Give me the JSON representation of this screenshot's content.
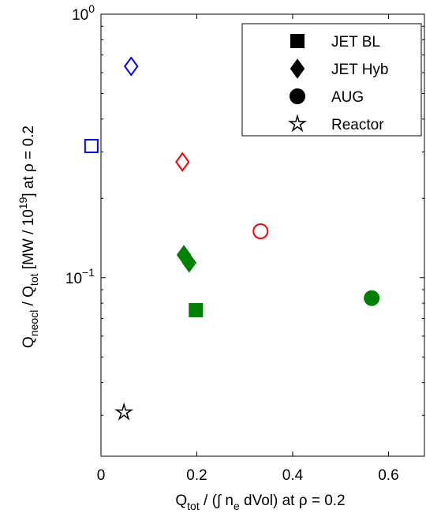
{
  "chart_data": {
    "type": "scatter",
    "xlabel": [
      "Q",
      "tot",
      " / (∫ n",
      "e",
      " dVol) at ρ = 0.2"
    ],
    "ylabel": [
      "Q",
      "neocl",
      " / Q",
      "tot",
      " [MW / 10",
      "19",
      "] at ρ = 0.2"
    ],
    "xlim": [
      0,
      0.675
    ],
    "xticks": [
      0,
      0.2,
      0.4,
      0.6
    ],
    "ylim": [
      0.021,
      1
    ],
    "log_y": true,
    "yticks": [
      {
        "value": 1,
        "label": "10",
        "exponent": "0"
      },
      {
        "value": 0.1,
        "label": "10",
        "exponent": "−1"
      }
    ],
    "legend": "top-right",
    "series": [
      {
        "name": "JET BL",
        "marker": "square",
        "x": [
          -0.02,
          0.198
        ],
        "values": [
          0.316,
          0.0753
        ],
        "colors": [
          "#0000ff",
          "#008000"
        ],
        "filled": [
          false,
          true
        ]
      },
      {
        "name": "JET Hyb",
        "marker": "diamond",
        "x": [
          0.063,
          0.17,
          0.173,
          0.184
        ],
        "values": [
          0.634,
          0.275,
          0.122,
          0.114
        ],
        "colors": [
          "#0000ff",
          "#ff0000",
          "#008000",
          "#008000"
        ],
        "filled": [
          false,
          false,
          true,
          true
        ]
      },
      {
        "name": "AUG",
        "marker": "circle",
        "x": [
          0.333,
          0.565
        ],
        "values": [
          0.15,
          0.0836
        ],
        "colors": [
          "#ff0000",
          "#008000"
        ],
        "filled": [
          false,
          true
        ]
      },
      {
        "name": "Reactor",
        "marker": "star",
        "x": [
          0.048
        ],
        "values": [
          0.0308
        ],
        "colors": [
          "#000000"
        ],
        "filled": [
          false
        ]
      }
    ]
  }
}
